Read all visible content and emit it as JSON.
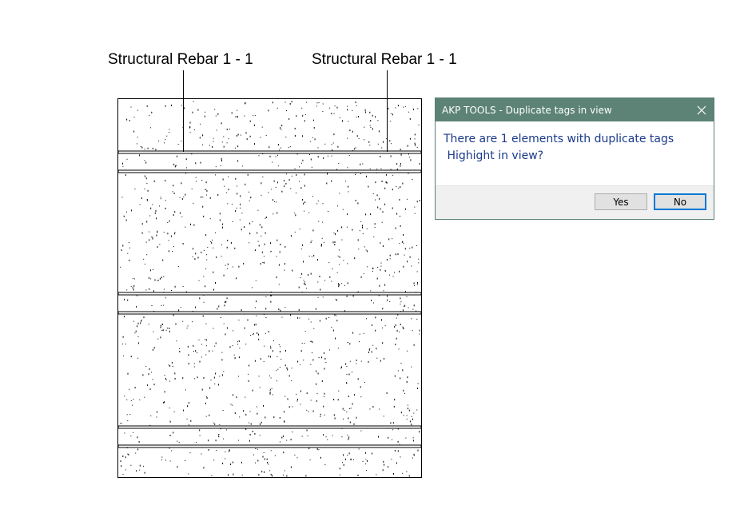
{
  "tags": [
    {
      "label": "Structural Rebar 1 - 1"
    },
    {
      "label": "Structural Rebar 1 - 1"
    }
  ],
  "drawing": {
    "material": "concrete",
    "line_color": "#000000"
  },
  "dialog": {
    "title": "AKP TOOLS - Duplicate tags in view",
    "close_icon": "close-icon",
    "message_line1": "There are 1 elements with duplicate tags",
    "message_line2": " Highight in view?",
    "yes_label": "Yes",
    "no_label": "No",
    "title_bar_color": "#5d8377",
    "message_color": "#1a3a8a"
  }
}
